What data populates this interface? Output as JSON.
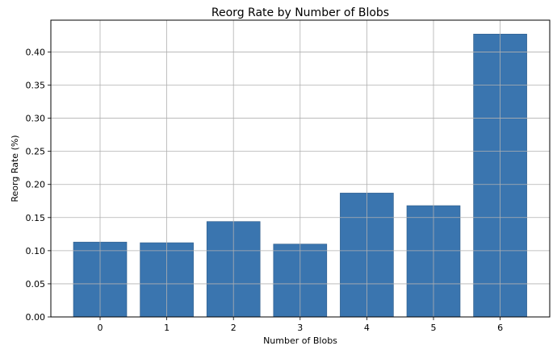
{
  "chart_data": {
    "type": "bar",
    "title": "Reorg Rate by Number of Blobs",
    "xlabel": "Number of Blobs",
    "ylabel": "Reorg Rate (%)",
    "categories": [
      "0",
      "1",
      "2",
      "3",
      "4",
      "5",
      "6"
    ],
    "values": [
      0.113,
      0.112,
      0.144,
      0.11,
      0.187,
      0.168,
      0.427
    ],
    "ylim": [
      0,
      0.448
    ],
    "yticks": [
      "0.00",
      "0.05",
      "0.10",
      "0.15",
      "0.20",
      "0.25",
      "0.30",
      "0.35",
      "0.40"
    ],
    "grid": true,
    "bar_color": "#3a75af",
    "bar_edge_color": "#2c5a88"
  }
}
